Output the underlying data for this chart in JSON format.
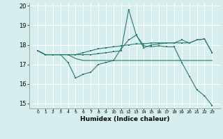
{
  "xlabel": "Humidex (Indice chaleur)",
  "x": [
    0,
    1,
    2,
    3,
    4,
    5,
    6,
    7,
    8,
    9,
    10,
    11,
    12,
    13,
    14,
    15,
    16,
    17,
    18,
    19,
    20,
    21,
    22,
    23
  ],
  "line1": [
    17.7,
    17.5,
    17.5,
    17.5,
    17.1,
    16.3,
    16.5,
    16.6,
    17.0,
    17.1,
    17.2,
    17.8,
    18.25,
    18.5,
    17.95,
    17.9,
    17.95,
    17.9,
    17.9,
    17.1,
    16.4,
    15.7,
    15.4,
    14.9
  ],
  "line2": [
    17.7,
    17.5,
    17.5,
    17.5,
    17.5,
    17.3,
    17.2,
    17.2,
    17.2,
    17.2,
    17.2,
    17.2,
    17.2,
    17.2,
    17.2,
    17.2,
    17.2,
    17.2,
    17.2,
    17.2,
    17.2,
    17.2,
    17.2,
    17.2
  ],
  "line3": [
    17.7,
    17.5,
    17.5,
    17.5,
    17.5,
    17.5,
    17.5,
    17.5,
    17.55,
    17.6,
    17.65,
    17.7,
    19.8,
    18.5,
    17.85,
    18.0,
    18.05,
    18.1,
    18.1,
    18.25,
    18.1,
    18.25,
    18.3,
    17.6
  ],
  "line4": [
    17.7,
    17.5,
    17.5,
    17.5,
    17.5,
    17.5,
    17.6,
    17.7,
    17.8,
    17.85,
    17.9,
    17.95,
    18.0,
    18.05,
    18.05,
    18.1,
    18.1,
    18.1,
    18.1,
    18.1,
    18.1,
    18.25,
    18.3,
    17.6
  ],
  "color": "#2a7a6e",
  "bg_color": "#d6eeed",
  "grid_color": "#ffffff",
  "ylim": [
    14.75,
    20.15
  ],
  "yticks": [
    15,
    16,
    17,
    18,
    19,
    20
  ]
}
